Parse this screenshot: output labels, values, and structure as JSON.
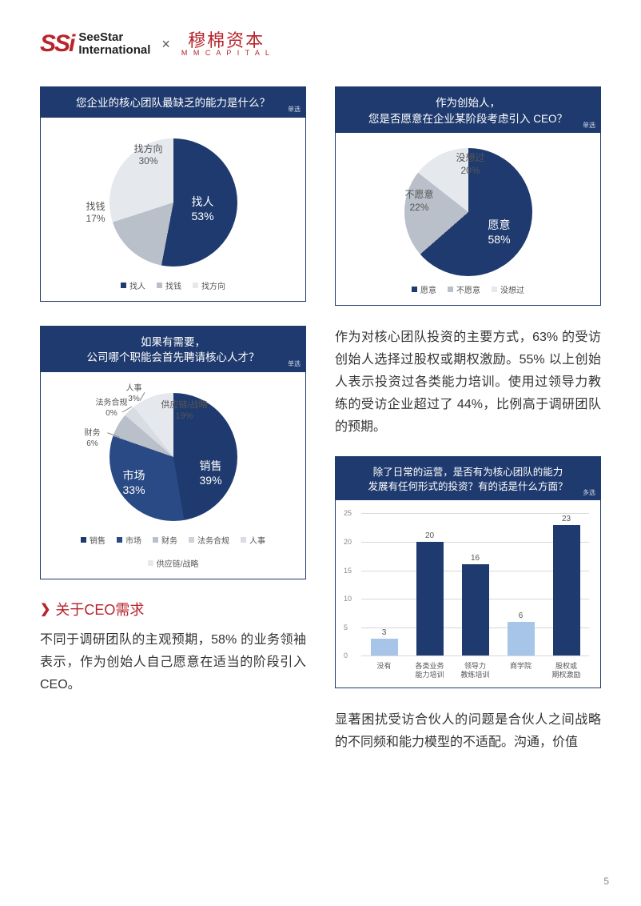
{
  "header": {
    "ssi_mark": "SSi",
    "ssi_line1": "SeeStar",
    "ssi_line2": "International",
    "sep": "×",
    "mm_cn": "穆棉资本",
    "mm_en": "M M  C A P I T A L"
  },
  "colors": {
    "navy": "#1f3a6e",
    "grey_mid": "#b9c0ca",
    "grey_light": "#e5e8ed",
    "bar_light": "#a7c5e8",
    "red": "#b8242b"
  },
  "pie1": {
    "title": "您企业的核心团队最缺乏的能力是什么？",
    "badge": "单选",
    "slices": [
      {
        "label": "找人",
        "pct": "53%",
        "value": 53,
        "color": "#1f3a6e"
      },
      {
        "label": "找钱",
        "pct": "17%",
        "value": 17,
        "color": "#b9c0ca"
      },
      {
        "label": "找方向",
        "pct": "30%",
        "value": 30,
        "color": "#e5e8ed"
      }
    ],
    "legend": [
      "找人",
      "找钱",
      "找方向"
    ]
  },
  "pie2": {
    "title_l1": "作为创始人，",
    "title_l2": "您是否愿意在企业某阶段考虑引入 CEO？",
    "badge": "单选",
    "slices": [
      {
        "label": "愿意",
        "pct": "58%",
        "value": 58,
        "color": "#1f3a6e"
      },
      {
        "label": "不愿意",
        "pct": "22%",
        "value": 22,
        "color": "#b9c0ca"
      },
      {
        "label": "没想过",
        "pct": "20%",
        "value": 20,
        "color": "#e5e8ed"
      }
    ],
    "legend": [
      "愿意",
      "不愿意",
      "没想过"
    ]
  },
  "pie3": {
    "title_l1": "如果有需要，",
    "title_l2": "公司哪个职能会首先聘请核心人才？",
    "badge": "单选",
    "slices": [
      {
        "label": "销售",
        "pct": "39%",
        "value": 39,
        "color": "#1f3a6e"
      },
      {
        "label": "市场",
        "pct": "33%",
        "value": 33,
        "color": "#2a4a85"
      },
      {
        "label": "财务",
        "pct": "6%",
        "value": 6,
        "color": "#b9c0ca"
      },
      {
        "label": "法务合规",
        "pct": "0%",
        "value": 0,
        "color": "#cdd3db"
      },
      {
        "label": "人事",
        "pct": "3%",
        "value": 3,
        "color": "#d8dce3"
      },
      {
        "label": "供应链/战略",
        "pct": "19%",
        "value": 19,
        "color": "#e5e8ed"
      }
    ],
    "legend": [
      "销售",
      "市场",
      "财务",
      "法务合规",
      "人事",
      "供应链/战略"
    ]
  },
  "bar": {
    "title_l1": "除了日常的运营，是否有为核心团队的能力",
    "title_l2": "发展有任何形式的投资？有的话是什么方面？",
    "badge": "多选",
    "ymax": 25,
    "ystep": 5,
    "bars": [
      {
        "label": "没有",
        "value": 3,
        "color": "#a7c5e8"
      },
      {
        "label": "各类业务\n能力培训",
        "value": 20,
        "color": "#1f3a6e"
      },
      {
        "label": "领导力\n教练培训",
        "value": 16,
        "color": "#1f3a6e"
      },
      {
        "label": "商学院",
        "value": 6,
        "color": "#a7c5e8"
      },
      {
        "label": "股权或\n期权激励",
        "value": 23,
        "color": "#1f3a6e"
      }
    ]
  },
  "section": {
    "label": "关于CEO需求"
  },
  "para_left": "不同于调研团队的主观预期，58% 的业务领袖表示，作为创始人自己愿意在适当的阶段引入 CEO。",
  "para_right_top": "作为对核心团队投资的主要方式，63% 的受访创始人选择过股权或期权激励。55% 以上创始人表示投资过各类能力培训。使用过领导力教练的受访企业超过了 44%，比例高于调研团队的预期。",
  "para_right_bottom": "显著困扰受访合伙人的问题是合伙人之间战略的不同频和能力模型的不适配。沟通，价值",
  "page_num": "5"
}
